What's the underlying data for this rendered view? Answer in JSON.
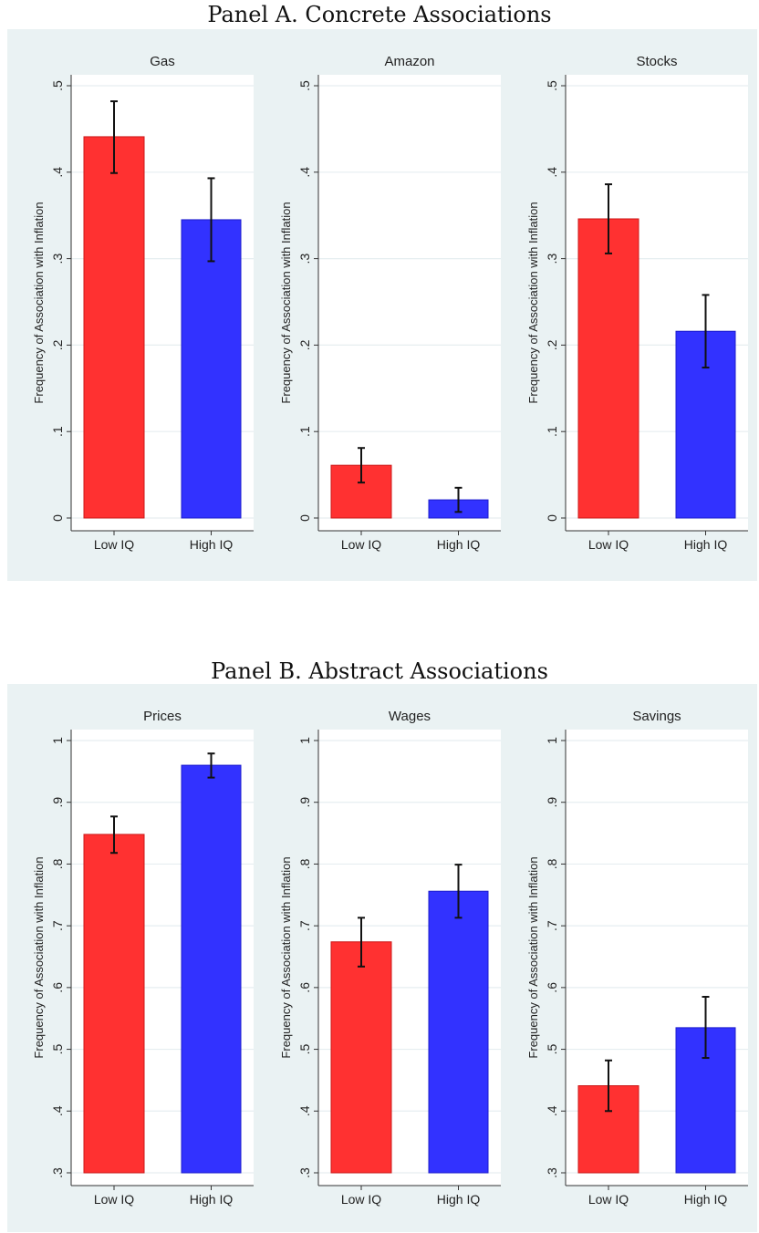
{
  "panels": [
    {
      "title": "Panel A. Concrete Associations",
      "ylabel": "Frequency of Association with Inflation",
      "ylim": [
        0,
        0.5
      ],
      "ticks": [
        0,
        0.1,
        0.2,
        0.3,
        0.4,
        0.5
      ],
      "tick_labels": [
        "0",
        ".1",
        ".2",
        ".3",
        ".4",
        ".5"
      ]
    },
    {
      "title": "Panel B. Abstract Associations",
      "ylabel": "Frequency of Association with Inflation",
      "ylim": [
        0.3,
        1.0
      ],
      "ticks": [
        0.3,
        0.4,
        0.5,
        0.6,
        0.7,
        0.8,
        0.9,
        1.0
      ],
      "tick_labels": [
        ".3",
        ".4",
        ".5",
        ".6",
        ".7",
        ".8",
        ".9",
        "1"
      ]
    }
  ],
  "colors": {
    "low_iq": "#ff3131",
    "high_iq": "#3232ff",
    "panel_bg": "#eaf2f3",
    "grid": "#e6eef0"
  },
  "chart_data": [
    {
      "type": "bar",
      "panel": 0,
      "title": "Gas",
      "categories": [
        "Low IQ",
        "High IQ"
      ],
      "values": [
        0.441,
        0.345
      ],
      "error_low": [
        0.399,
        0.297
      ],
      "error_high": [
        0.482,
        0.393
      ],
      "ylabel": "Frequency of Association with Inflation",
      "ylim": [
        0,
        0.5
      ],
      "grid": true
    },
    {
      "type": "bar",
      "panel": 0,
      "title": "Amazon",
      "categories": [
        "Low IQ",
        "High IQ"
      ],
      "values": [
        0.061,
        0.021
      ],
      "error_low": [
        0.041,
        0.007
      ],
      "error_high": [
        0.081,
        0.035
      ],
      "ylabel": "Frequency of Association with Inflation",
      "ylim": [
        0,
        0.5
      ],
      "grid": true
    },
    {
      "type": "bar",
      "panel": 0,
      "title": "Stocks",
      "categories": [
        "Low IQ",
        "High IQ"
      ],
      "values": [
        0.346,
        0.216
      ],
      "error_low": [
        0.306,
        0.174
      ],
      "error_high": [
        0.386,
        0.258
      ],
      "ylabel": "Frequency of Association with Inflation",
      "ylim": [
        0,
        0.5
      ],
      "grid": true
    },
    {
      "type": "bar",
      "panel": 1,
      "title": "Prices",
      "categories": [
        "Low IQ",
        "High IQ"
      ],
      "values": [
        0.848,
        0.96
      ],
      "error_low": [
        0.818,
        0.94
      ],
      "error_high": [
        0.877,
        0.979
      ],
      "ylabel": "Frequency of Association with Inflation",
      "ylim": [
        0.3,
        1.0
      ],
      "grid": true
    },
    {
      "type": "bar",
      "panel": 1,
      "title": "Wages",
      "categories": [
        "Low IQ",
        "High IQ"
      ],
      "values": [
        0.674,
        0.756
      ],
      "error_low": [
        0.634,
        0.713
      ],
      "error_high": [
        0.713,
        0.799
      ],
      "ylabel": "Frequency of Association with Inflation",
      "ylim": [
        0.3,
        1.0
      ],
      "grid": true
    },
    {
      "type": "bar",
      "panel": 1,
      "title": "Savings",
      "categories": [
        "Low IQ",
        "High IQ"
      ],
      "values": [
        0.441,
        0.535
      ],
      "error_low": [
        0.4,
        0.486
      ],
      "error_high": [
        0.482,
        0.585
      ],
      "ylabel": "Frequency of Association with Inflation",
      "ylim": [
        0.3,
        1.0
      ],
      "grid": true
    }
  ]
}
